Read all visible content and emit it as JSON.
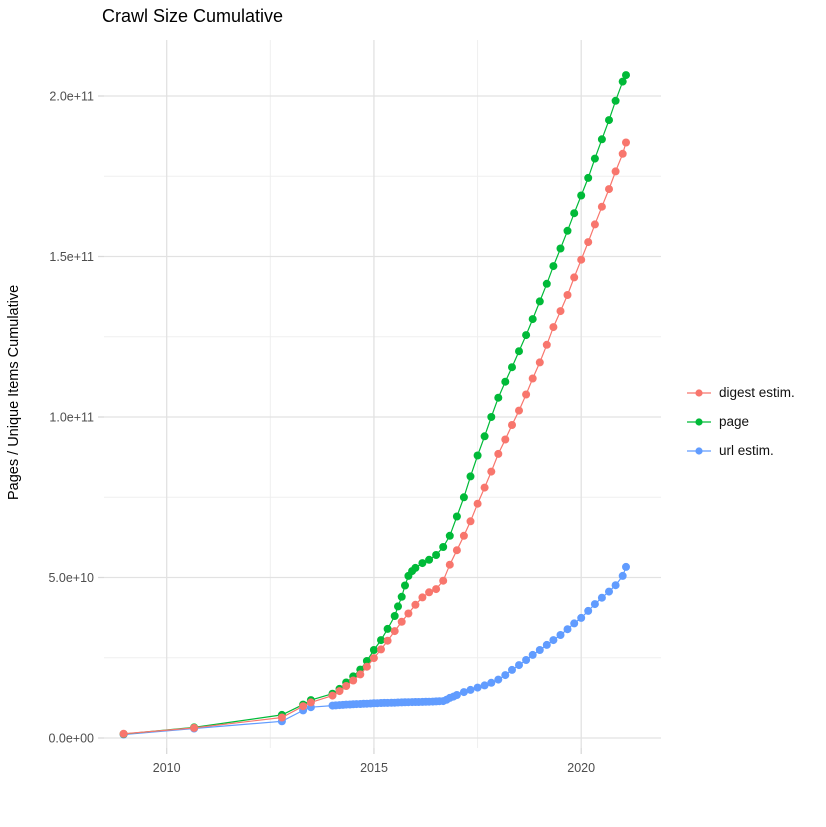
{
  "title": "Crawl Size Cumulative",
  "chart_data": {
    "type": "scatter",
    "title": "Crawl Size Cumulative",
    "xlabel": "",
    "ylabel": "Pages / Unique Items Cumulative",
    "xlim": [
      2008.49,
      2021.92
    ],
    "ylim": [
      0,
      219000000000.0
    ],
    "grid": true,
    "legend_position": "right",
    "x_ticks": [
      {
        "value": 2010,
        "label": "2010"
      },
      {
        "value": 2015,
        "label": "2015"
      },
      {
        "value": 2020,
        "label": "2020"
      }
    ],
    "x_minor_ticks": [
      2012.5,
      2017.5
    ],
    "y_ticks": [
      {
        "value": 0,
        "label": "0.0e+00"
      },
      {
        "value": 50000000000.0,
        "label": "5.0e+10"
      },
      {
        "value": 100000000000.0,
        "label": "1.0e+11"
      },
      {
        "value": 150000000000.0,
        "label": "1.5e+11"
      },
      {
        "value": 200000000000.0,
        "label": "2.0e+11"
      }
    ],
    "y_minor_ticks": [
      25000000000.0,
      75000000000.0,
      125000000000.0,
      175000000000.0
    ],
    "series": [
      {
        "name": "digest estim.",
        "color": "#F8766D",
        "points": [
          [
            2008.96,
            1300000000.0
          ],
          [
            2010.66,
            3150000000.0
          ],
          [
            2012.78,
            6400000000.0
          ],
          [
            2013.29,
            9900000000.0
          ],
          [
            2013.48,
            11100000000.0
          ],
          [
            2014.0,
            13200000000.0
          ],
          [
            2014.17,
            14600000000.0
          ],
          [
            2014.33,
            16200000000.0
          ],
          [
            2014.5,
            17900000000.0
          ],
          [
            2014.67,
            19800000000.0
          ],
          [
            2014.83,
            22200000000.0
          ],
          [
            2015.0,
            24900000000.0
          ],
          [
            2015.17,
            27600000000.0
          ],
          [
            2015.33,
            30300000000.0
          ],
          [
            2015.5,
            33300000000.0
          ],
          [
            2015.67,
            36200000000.0
          ],
          [
            2015.83,
            38800000000.0
          ],
          [
            2016.0,
            41500000000.0
          ],
          [
            2016.17,
            43800000000.0
          ],
          [
            2016.33,
            45400000000.0
          ],
          [
            2016.5,
            46400000000.0
          ],
          [
            2016.67,
            49000000000.0
          ],
          [
            2016.83,
            54000000000.0
          ],
          [
            2017.0,
            58500000000.0
          ],
          [
            2017.17,
            63000000000.0
          ],
          [
            2017.33,
            67500000000.0
          ],
          [
            2017.5,
            73000000000.0
          ],
          [
            2017.67,
            78000000000.0
          ],
          [
            2017.83,
            83000000000.0
          ],
          [
            2018.0,
            88500000000.0
          ],
          [
            2018.17,
            93000000000.0
          ],
          [
            2018.33,
            97500000000.0
          ],
          [
            2018.5,
            102000000000.0
          ],
          [
            2018.67,
            107000000000.0
          ],
          [
            2018.83,
            112000000000.0
          ],
          [
            2019.0,
            117000000000.0
          ],
          [
            2019.17,
            122500000000.0
          ],
          [
            2019.33,
            128000000000.0
          ],
          [
            2019.5,
            133000000000.0
          ],
          [
            2019.67,
            138000000000.0
          ],
          [
            2019.83,
            143500000000.0
          ],
          [
            2020.0,
            149000000000.0
          ],
          [
            2020.17,
            154500000000.0
          ],
          [
            2020.33,
            160000000000.0
          ],
          [
            2020.5,
            165500000000.0
          ],
          [
            2020.67,
            171000000000.0
          ],
          [
            2020.83,
            176500000000.0
          ],
          [
            2021.0,
            182000000000.0
          ],
          [
            2021.08,
            185500000000.0
          ]
        ]
      },
      {
        "name": "page",
        "color": "#00BA38",
        "points": [
          [
            2008.96,
            1250000000.0
          ],
          [
            2010.66,
            3300000000.0
          ],
          [
            2012.78,
            7200000000.0
          ],
          [
            2013.29,
            10400000000.0
          ],
          [
            2013.48,
            11800000000.0
          ],
          [
            2014.0,
            13800000000.0
          ],
          [
            2014.17,
            15300000000.0
          ],
          [
            2014.33,
            17300000000.0
          ],
          [
            2014.5,
            19200000000.0
          ],
          [
            2014.67,
            21300000000.0
          ],
          [
            2014.83,
            24000000000.0
          ],
          [
            2015.0,
            27400000000.0
          ],
          [
            2015.17,
            30500000000.0
          ],
          [
            2015.33,
            34000000000.0
          ],
          [
            2015.5,
            38000000000.0
          ],
          [
            2015.58,
            41000000000.0
          ],
          [
            2015.67,
            44000000000.0
          ],
          [
            2015.75,
            47500000000.0
          ],
          [
            2015.83,
            50500000000.0
          ],
          [
            2015.92,
            52000000000.0
          ],
          [
            2016.0,
            53000000000.0
          ],
          [
            2016.17,
            54500000000.0
          ],
          [
            2016.33,
            55500000000.0
          ],
          [
            2016.5,
            57000000000.0
          ],
          [
            2016.67,
            59500000000.0
          ],
          [
            2016.83,
            63000000000.0
          ],
          [
            2017.0,
            69000000000.0
          ],
          [
            2017.17,
            75000000000.0
          ],
          [
            2017.33,
            81500000000.0
          ],
          [
            2017.5,
            88000000000.0
          ],
          [
            2017.67,
            94000000000.0
          ],
          [
            2017.83,
            100000000000.0
          ],
          [
            2018.0,
            106000000000.0
          ],
          [
            2018.17,
            111000000000.0
          ],
          [
            2018.33,
            115500000000.0
          ],
          [
            2018.5,
            120500000000.0
          ],
          [
            2018.67,
            125500000000.0
          ],
          [
            2018.83,
            130500000000.0
          ],
          [
            2019.0,
            136000000000.0
          ],
          [
            2019.17,
            141500000000.0
          ],
          [
            2019.33,
            147000000000.0
          ],
          [
            2019.5,
            152500000000.0
          ],
          [
            2019.67,
            158000000000.0
          ],
          [
            2019.83,
            163500000000.0
          ],
          [
            2020.0,
            169000000000.0
          ],
          [
            2020.17,
            174500000000.0
          ],
          [
            2020.33,
            180500000000.0
          ],
          [
            2020.5,
            186500000000.0
          ],
          [
            2020.67,
            192500000000.0
          ],
          [
            2020.83,
            198500000000.0
          ],
          [
            2021.0,
            204500000000.0
          ],
          [
            2021.08,
            206500000000.0
          ]
        ]
      },
      {
        "name": "url estim.",
        "color": "#619CFF",
        "points": [
          [
            2008.96,
            1100000000.0
          ],
          [
            2010.66,
            2950000000.0
          ],
          [
            2012.78,
            5200000000.0
          ],
          [
            2013.29,
            8600000000.0
          ],
          [
            2013.48,
            9600000000.0
          ],
          [
            2014.0,
            10100000000.0
          ],
          [
            2014.08,
            10170000000.0
          ],
          [
            2014.17,
            10250000000.0
          ],
          [
            2014.25,
            10320000000.0
          ],
          [
            2014.33,
            10400000000.0
          ],
          [
            2014.42,
            10450000000.0
          ],
          [
            2014.5,
            10500000000.0
          ],
          [
            2014.58,
            10550000000.0
          ],
          [
            2014.67,
            10600000000.0
          ],
          [
            2014.75,
            10650000000.0
          ],
          [
            2014.83,
            10700000000.0
          ],
          [
            2014.92,
            10750000000.0
          ],
          [
            2015.0,
            10800000000.0
          ],
          [
            2015.08,
            10850000000.0
          ],
          [
            2015.17,
            10900000000.0
          ],
          [
            2015.25,
            10920000000.0
          ],
          [
            2015.33,
            10950000000.0
          ],
          [
            2015.42,
            10970000000.0
          ],
          [
            2015.5,
            11000000000.0
          ],
          [
            2015.58,
            11050000000.0
          ],
          [
            2015.67,
            11100000000.0
          ],
          [
            2015.75,
            11120000000.0
          ],
          [
            2015.83,
            11150000000.0
          ],
          [
            2015.92,
            11170000000.0
          ],
          [
            2016.0,
            11200000000.0
          ],
          [
            2016.08,
            11220000000.0
          ],
          [
            2016.17,
            11250000000.0
          ],
          [
            2016.25,
            11280000000.0
          ],
          [
            2016.33,
            11300000000.0
          ],
          [
            2016.42,
            11350000000.0
          ],
          [
            2016.5,
            11400000000.0
          ],
          [
            2016.58,
            11450000000.0
          ],
          [
            2016.67,
            11500000000.0
          ],
          [
            2016.75,
            11900000000.0
          ],
          [
            2016.83,
            12500000000.0
          ],
          [
            2016.92,
            12900000000.0
          ],
          [
            2017.0,
            13400000000.0
          ],
          [
            2017.17,
            14300000000.0
          ],
          [
            2017.33,
            15000000000.0
          ],
          [
            2017.5,
            15700000000.0
          ],
          [
            2017.67,
            16400000000.0
          ],
          [
            2017.83,
            17200000000.0
          ],
          [
            2018.0,
            18200000000.0
          ],
          [
            2018.17,
            19600000000.0
          ],
          [
            2018.33,
            21200000000.0
          ],
          [
            2018.5,
            22700000000.0
          ],
          [
            2018.67,
            24300000000.0
          ],
          [
            2018.83,
            25900000000.0
          ],
          [
            2019.0,
            27400000000.0
          ],
          [
            2019.17,
            29000000000.0
          ],
          [
            2019.33,
            30500000000.0
          ],
          [
            2019.5,
            32100000000.0
          ],
          [
            2019.67,
            33900000000.0
          ],
          [
            2019.83,
            35700000000.0
          ],
          [
            2020.0,
            37400000000.0
          ],
          [
            2020.17,
            39600000000.0
          ],
          [
            2020.33,
            41700000000.0
          ],
          [
            2020.5,
            43700000000.0
          ],
          [
            2020.67,
            45600000000.0
          ],
          [
            2020.83,
            47600000000.0
          ],
          [
            2021.0,
            50500000000.0
          ],
          [
            2021.08,
            53300000000.0
          ]
        ]
      }
    ]
  }
}
